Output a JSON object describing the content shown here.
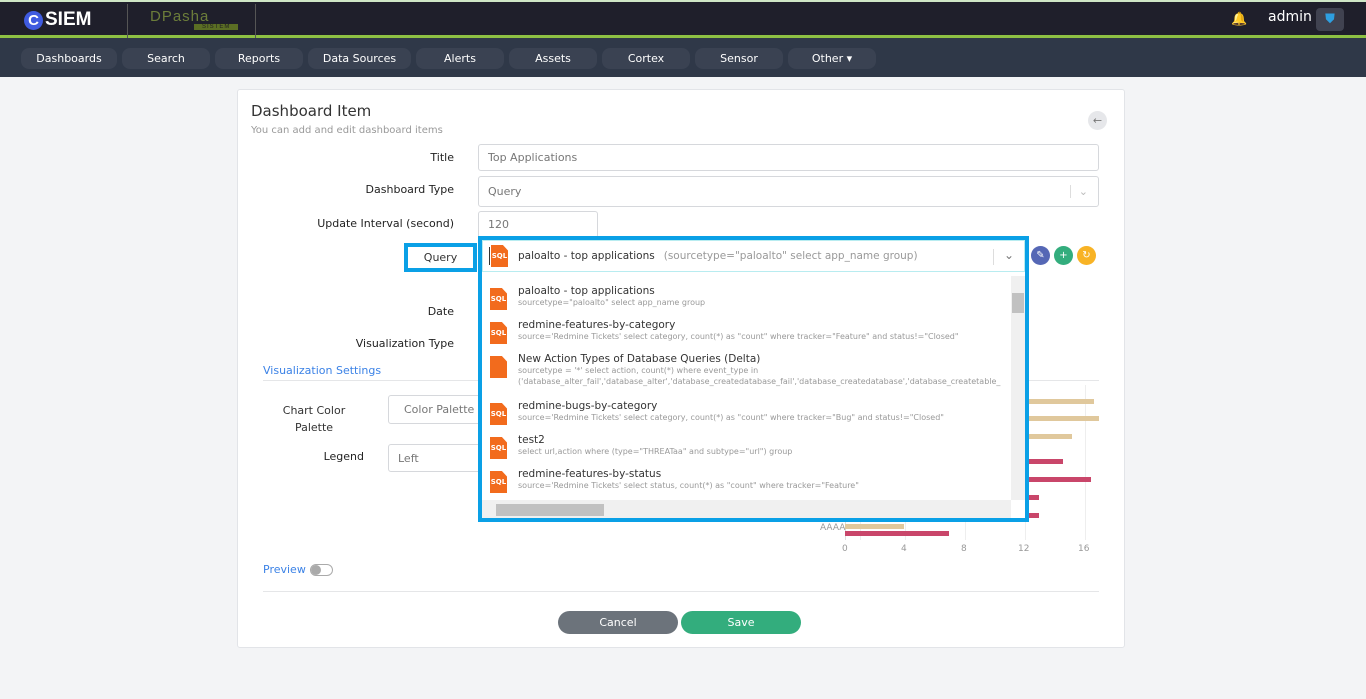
{
  "brand": {
    "logo_letter": "C",
    "logo_text": "SIEM",
    "partner": "DPasha",
    "partner_tag": "SISTEM"
  },
  "header": {
    "user": "admin",
    "icons": [
      "bell-icon",
      "shield-icon"
    ]
  },
  "nav": [
    "Dashboards",
    "Search",
    "Reports",
    "Data Sources",
    "Alerts",
    "Assets",
    "Cortex",
    "Sensor",
    "Other ▾"
  ],
  "form": {
    "title": "Dashboard Item",
    "subtitle": "You can add and edit dashboard items",
    "labels": {
      "title": "Title",
      "dashboard_type": "Dashboard Type",
      "update_interval": "Update Interval (second)",
      "query": "Query",
      "date": "Date",
      "visualization_type": "Visualization Type",
      "chart_color_palette_1": "Chart Color",
      "chart_color_palette_2": "Palette",
      "legend": "Legend"
    },
    "values": {
      "title": "Top Applications",
      "dashboard_type": "Query",
      "update_interval": "120",
      "chart_color_palette": "Color Palette",
      "legend": "Left"
    },
    "section": "Visualization Settings",
    "preview": "Preview",
    "preview_on": false,
    "cancel": "Cancel",
    "save": "Save"
  },
  "query": {
    "selected_name": "paloalto - top applications",
    "selected_query": "(sourcetype=\"paloalto\" select app_name group)",
    "badge": "SQL",
    "options": [
      {
        "name": "paloalto - top applications",
        "query": "sourcetype=\"paloalto\" select app_name group"
      },
      {
        "name": "redmine-features-by-category",
        "query": "source='Redmine Tickets' select category, count(*) as \"count\" where tracker=\"Feature\" and status!=\"Closed\""
      },
      {
        "name": "New Action Types of Database Queries (Delta)",
        "query": "sourcetype = '*' select action, count(*) where event_type in",
        "query2": "('database_alter_fail','database_alter','database_createdatabase_fail','database_createdatabase','database_createtable_"
      },
      {
        "name": "redmine-bugs-by-category",
        "query": "source='Redmine Tickets' select category, count(*) as \"count\" where tracker=\"Bug\" and status!=\"Closed\""
      },
      {
        "name": "test2",
        "query": "select url,action where (type=\"THREATaa\" and subtype=\"url\") group"
      },
      {
        "name": "redmine-features-by-status",
        "query": "source='Redmine Tickets' select status, count(*) as \"count\" where tracker=\"Feature\""
      }
    ]
  },
  "colors": {
    "highlight": "#0aa0e6",
    "accent_green": "#8dc043",
    "sql_orange": "#f26b1d",
    "edit": "#5567b5",
    "add": "#33ad7d",
    "refresh": "#f8b325",
    "save": "#33ad7d",
    "cancel": "#6c737b"
  },
  "chart_data": {
    "type": "bar",
    "orientation": "horizontal",
    "categories_visible": [
      "AAAA"
    ],
    "xticks": [
      "0",
      "4",
      "8",
      "12",
      "16"
    ],
    "xlim": [
      0,
      17
    ],
    "series": [
      {
        "color": "#e0c89c",
        "values": [
          16.6,
          16.9,
          15.1,
          3.9
        ]
      },
      {
        "color": "#c9466a",
        "values": [
          14.5,
          16.4,
          12.9,
          12.9,
          6.9
        ]
      }
    ]
  }
}
